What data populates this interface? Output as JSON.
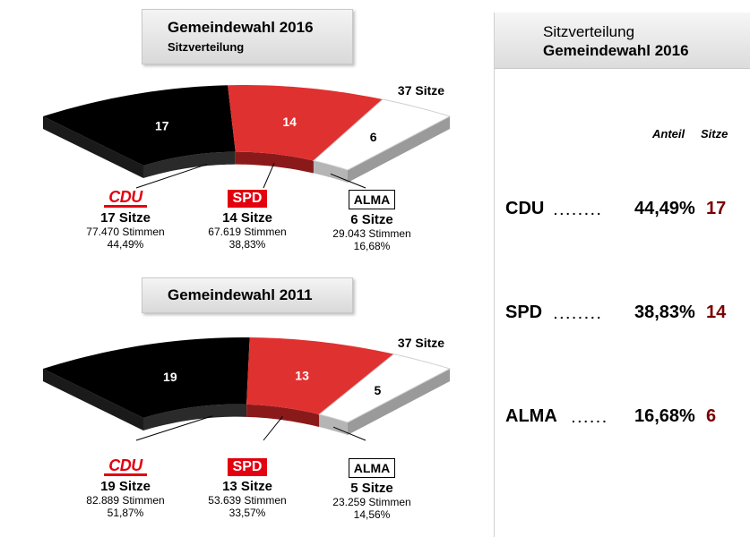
{
  "election_2016": {
    "title": "Gemeindewahl 2016",
    "subtitle": "Sitzverteilung",
    "total_label": "37 Sitze",
    "parties": [
      {
        "logo": "CDU",
        "seats": 17,
        "seats_label": "17 Sitze",
        "votes_label": "77.470 Stimmen",
        "pct_label": "44,49%",
        "color": "#000000"
      },
      {
        "logo": "SPD",
        "seats": 14,
        "seats_label": "14 Sitze",
        "votes_label": "67.619 Stimmen",
        "pct_label": "38,83%",
        "color": "#e03131"
      },
      {
        "logo": "ALMA",
        "seats": 6,
        "seats_label": "6 Sitze",
        "votes_label": "29.043 Stimmen",
        "pct_label": "16,68%",
        "color": "#ffffff"
      }
    ]
  },
  "election_2011": {
    "title": "Gemeindewahl 2011",
    "total_label": "37 Sitze",
    "parties": [
      {
        "logo": "CDU",
        "seats": 19,
        "seats_label": "19 Sitze",
        "votes_label": "82.889 Stimmen",
        "pct_label": "51,87%",
        "color": "#000000"
      },
      {
        "logo": "SPD",
        "seats": 13,
        "seats_label": "13 Sitze",
        "votes_label": "53.639 Stimmen",
        "pct_label": "33,57%",
        "color": "#e03131"
      },
      {
        "logo": "ALMA",
        "seats": 5,
        "seats_label": "5 Sitze",
        "votes_label": "23.259 Stimmen",
        "pct_label": "14,56%",
        "color": "#ffffff"
      }
    ]
  },
  "summary": {
    "title_line1": "Sitzverteilung",
    "title_line2": "Gemeindewahl 2016",
    "col_share": "Anteil",
    "col_seats": "Sitze",
    "rows": [
      {
        "name": "CDU",
        "dots": "........",
        "share": "44,49%",
        "seats": "17"
      },
      {
        "name": "SPD",
        "dots": "........",
        "share": "38,83%",
        "seats": "14"
      },
      {
        "name": "ALMA",
        "dots": "......",
        "share": "16,68%",
        "seats": "6"
      }
    ]
  },
  "chart_data": [
    {
      "type": "pie",
      "title": "Gemeindewahl 2016",
      "subtitle": "Sitzverteilung",
      "categories": [
        "CDU",
        "SPD",
        "ALMA"
      ],
      "values": [
        17,
        14,
        6
      ],
      "total": 37,
      "vote_shares_pct": [
        44.49,
        38.83,
        16.68
      ],
      "votes": [
        77470,
        67619,
        29043
      ]
    },
    {
      "type": "pie",
      "title": "Gemeindewahl 2011",
      "categories": [
        "CDU",
        "SPD",
        "ALMA"
      ],
      "values": [
        19,
        13,
        5
      ],
      "total": 37,
      "vote_shares_pct": [
        51.87,
        33.57,
        14.56
      ],
      "votes": [
        82889,
        53639,
        23259
      ]
    }
  ]
}
